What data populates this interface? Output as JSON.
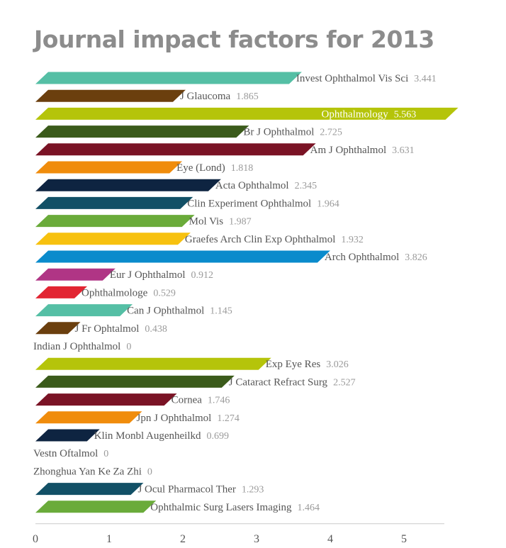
{
  "chart_data": {
    "type": "bar",
    "orientation": "horizontal",
    "title": "Journal impact factors for 2013",
    "xlabel": "",
    "ylabel": "",
    "xlim": [
      0,
      5.5
    ],
    "xticks": [
      "0",
      "1",
      "2",
      "3",
      "4",
      "5"
    ],
    "grid": false,
    "legend": "none",
    "bars": [
      {
        "category": "Invest Ophthalmol Vis Sci",
        "value": 3.441,
        "label": "3.441",
        "color": "#55bfa5"
      },
      {
        "category": "J Glaucoma",
        "value": 1.865,
        "label": "1.865",
        "color": "#6b3f0e"
      },
      {
        "category": "Ophthalmology",
        "value": 5.563,
        "label": "5.563",
        "color": "#b5c40a"
      },
      {
        "category": "Br J Ophthalmol",
        "value": 2.725,
        "label": "2.725",
        "color": "#3b5b1b"
      },
      {
        "category": "Am J Ophthalmol",
        "value": 3.631,
        "label": "3.631",
        "color": "#7a1325"
      },
      {
        "category": "Eye (Lond)",
        "value": 1.818,
        "label": "1.818",
        "color": "#f08c0c"
      },
      {
        "category": "Acta Ophthalmol",
        "value": 2.345,
        "label": "2.345",
        "color": "#0e2441"
      },
      {
        "category": "Clin Experiment Ophthalmol",
        "value": 1.964,
        "label": "1.964",
        "color": "#125066"
      },
      {
        "category": "Mol Vis",
        "value": 1.987,
        "label": "1.987",
        "color": "#6aab3a"
      },
      {
        "category": "Graefes Arch Clin Exp Ophthalmol",
        "value": 1.932,
        "label": "1.932",
        "color": "#f7c10f"
      },
      {
        "category": "Arch Ophthalmol",
        "value": 3.826,
        "label": "3.826",
        "color": "#0a8bcc"
      },
      {
        "category": "Eur J Ophthalmol",
        "value": 0.912,
        "label": "0.912",
        "color": "#b03585"
      },
      {
        "category": "Ophthalmologe",
        "value": 0.529,
        "label": "0.529",
        "color": "#e22532"
      },
      {
        "category": "Can J Ophthalmol",
        "value": 1.145,
        "label": "1.145",
        "color": "#55bfa5"
      },
      {
        "category": "J Fr Ophtalmol",
        "value": 0.438,
        "label": "0.438",
        "color": "#6b3f0e"
      },
      {
        "category": "Indian J Ophthalmol",
        "value": 0,
        "label": "0",
        "color": "#b5c40a"
      },
      {
        "category": "Exp Eye Res",
        "value": 3.026,
        "label": "3.026",
        "color": "#b5c40a"
      },
      {
        "category": "J Cataract Refract Surg",
        "value": 2.527,
        "label": "2.527",
        "color": "#3b5b1b"
      },
      {
        "category": "Cornea",
        "value": 1.746,
        "label": "1.746",
        "color": "#7a1325"
      },
      {
        "category": "Jpn J Ophthalmol",
        "value": 1.274,
        "label": "1.274",
        "color": "#f08c0c"
      },
      {
        "category": "Klin Monbl Augenheilkd",
        "value": 0.699,
        "label": "0.699",
        "color": "#0e2441"
      },
      {
        "category": "Vestn Oftalmol",
        "value": 0,
        "label": "0",
        "color": "#125066"
      },
      {
        "category": "Zhonghua Yan Ke Za Zhi",
        "value": 0,
        "label": "0",
        "color": "#6aab3a"
      },
      {
        "category": "J Ocul Pharmacol Ther",
        "value": 1.293,
        "label": "1.293",
        "color": "#125066"
      },
      {
        "category": "Ophthalmic Surg Lasers Imaging",
        "value": 1.464,
        "label": "1.464",
        "color": "#6aab3a"
      }
    ]
  }
}
